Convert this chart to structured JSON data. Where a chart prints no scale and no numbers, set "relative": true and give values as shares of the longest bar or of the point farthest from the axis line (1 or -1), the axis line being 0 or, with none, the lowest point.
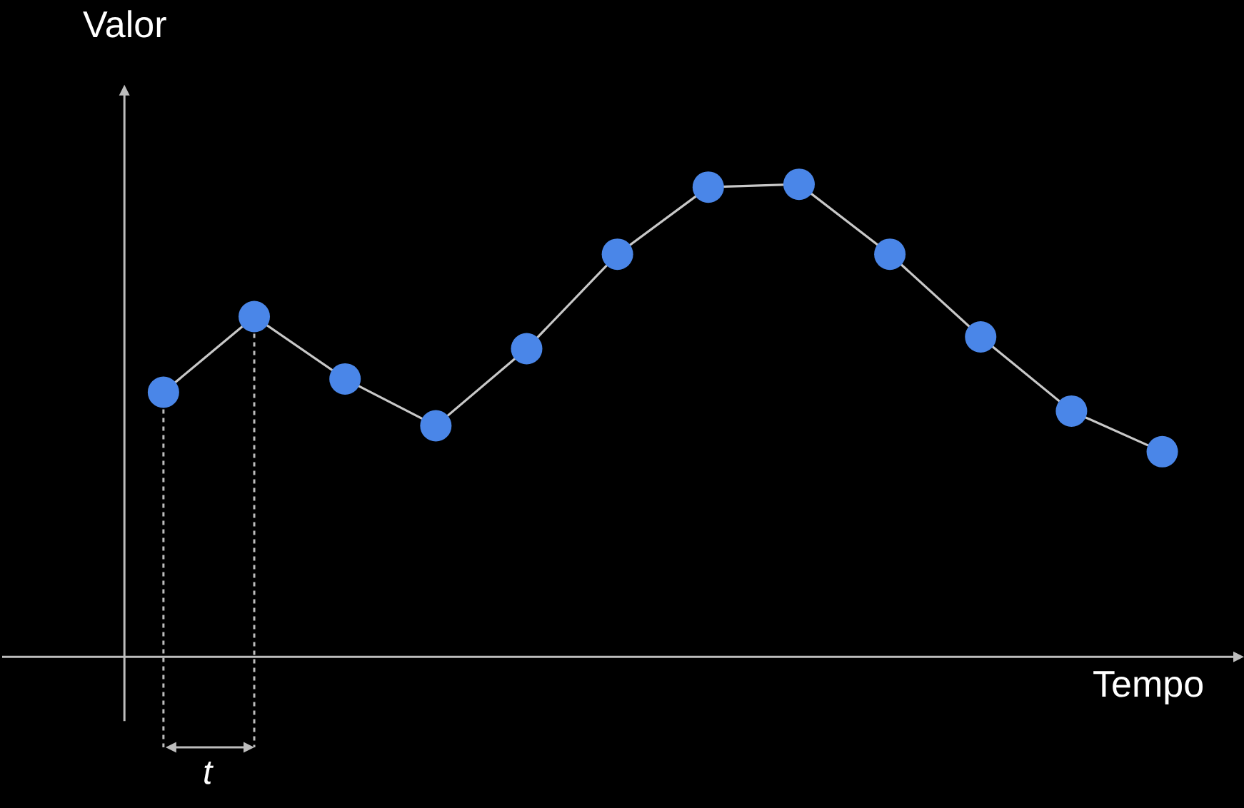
{
  "chart_data": {
    "type": "line",
    "relative": true,
    "xlabel": "Tempo",
    "ylabel": "Valor",
    "legend": false,
    "annotations": [
      "t"
    ],
    "categories": [
      null,
      null,
      null,
      null,
      null,
      null,
      null,
      null,
      null,
      null,
      null,
      null
    ],
    "series": [
      {
        "color": "#c8c8c8",
        "colors": [
          "#4a86e8",
          "#4a86e8",
          "#4a86e8",
          "#4a86e8",
          "#4a86e8",
          "#4a86e8",
          "#4a86e8",
          "#4a86e8",
          "#4a86e8",
          "#4a86e8",
          "#4a86e8",
          "#4a86e8"
        ],
        "marker": "circle",
        "line_style": "solid",
        "values": [
          0.56,
          0.72,
          0.588,
          0.489,
          0.652,
          0.852,
          0.994,
          1,
          0.852,
          0.677,
          0.52,
          0.434
        ]
      }
    ]
  }
}
